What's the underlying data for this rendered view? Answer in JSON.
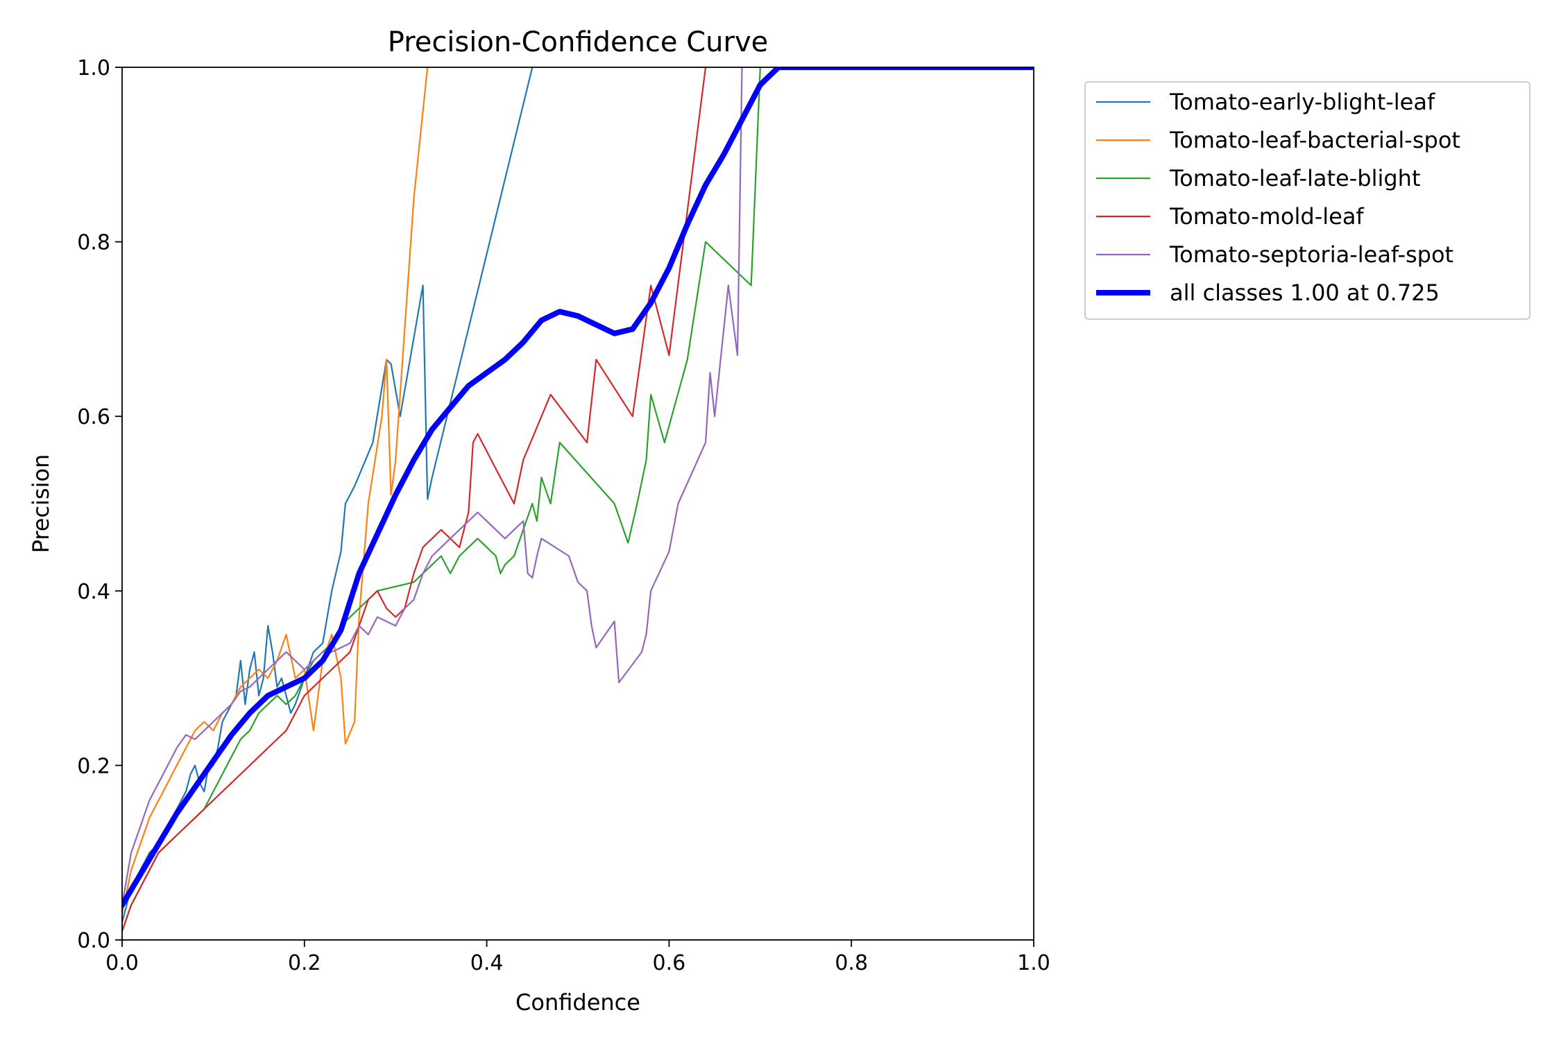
{
  "chart_data": {
    "type": "line",
    "title": "Precision-Confidence Curve",
    "xlabel": "Confidence",
    "ylabel": "Precision",
    "xlim": [
      0,
      1
    ],
    "ylim": [
      0,
      1
    ],
    "xticks": [
      0.0,
      0.2,
      0.4,
      0.6,
      0.8,
      1.0
    ],
    "yticks": [
      0.0,
      0.2,
      0.4,
      0.6,
      0.8,
      1.0
    ],
    "xtick_labels": [
      "0.0",
      "0.2",
      "0.4",
      "0.6",
      "0.8",
      "1.0"
    ],
    "ytick_labels": [
      "0.0",
      "0.2",
      "0.4",
      "0.6",
      "0.8",
      "1.0"
    ],
    "grid": false,
    "legend_position": "outside top-right",
    "series": [
      {
        "name": "Tomato-early-blight-leaf",
        "color": "#1f77b4",
        "width": "thin",
        "points": [
          [
            0.0,
            0.02
          ],
          [
            0.01,
            0.06
          ],
          [
            0.02,
            0.08
          ],
          [
            0.03,
            0.1
          ],
          [
            0.04,
            0.11
          ],
          [
            0.05,
            0.13
          ],
          [
            0.06,
            0.15
          ],
          [
            0.07,
            0.17
          ],
          [
            0.075,
            0.19
          ],
          [
            0.08,
            0.2
          ],
          [
            0.085,
            0.18
          ],
          [
            0.09,
            0.17
          ],
          [
            0.095,
            0.2
          ],
          [
            0.1,
            0.2
          ],
          [
            0.105,
            0.22
          ],
          [
            0.11,
            0.25
          ],
          [
            0.115,
            0.26
          ],
          [
            0.12,
            0.27
          ],
          [
            0.125,
            0.28
          ],
          [
            0.13,
            0.32
          ],
          [
            0.135,
            0.27
          ],
          [
            0.14,
            0.31
          ],
          [
            0.145,
            0.33
          ],
          [
            0.15,
            0.28
          ],
          [
            0.155,
            0.3
          ],
          [
            0.16,
            0.36
          ],
          [
            0.165,
            0.33
          ],
          [
            0.17,
            0.29
          ],
          [
            0.175,
            0.3
          ],
          [
            0.18,
            0.28
          ],
          [
            0.185,
            0.26
          ],
          [
            0.19,
            0.27
          ],
          [
            0.2,
            0.3
          ],
          [
            0.21,
            0.33
          ],
          [
            0.22,
            0.34
          ],
          [
            0.23,
            0.4
          ],
          [
            0.24,
            0.445
          ],
          [
            0.245,
            0.5
          ],
          [
            0.255,
            0.52
          ],
          [
            0.265,
            0.545
          ],
          [
            0.275,
            0.57
          ],
          [
            0.29,
            0.665
          ],
          [
            0.295,
            0.66
          ],
          [
            0.305,
            0.6
          ],
          [
            0.33,
            0.75
          ],
          [
            0.335,
            0.505
          ],
          [
            0.34,
            0.53
          ],
          [
            0.45,
            1.0
          ]
        ]
      },
      {
        "name": "Tomato-leaf-bacterial-spot",
        "color": "#ff7f0e",
        "width": "thin",
        "points": [
          [
            0.0,
            0.03
          ],
          [
            0.01,
            0.08
          ],
          [
            0.02,
            0.11
          ],
          [
            0.03,
            0.14
          ],
          [
            0.04,
            0.16
          ],
          [
            0.05,
            0.18
          ],
          [
            0.06,
            0.2
          ],
          [
            0.07,
            0.22
          ],
          [
            0.08,
            0.24
          ],
          [
            0.09,
            0.25
          ],
          [
            0.1,
            0.24
          ],
          [
            0.11,
            0.26
          ],
          [
            0.12,
            0.27
          ],
          [
            0.13,
            0.29
          ],
          [
            0.14,
            0.3
          ],
          [
            0.15,
            0.31
          ],
          [
            0.16,
            0.3
          ],
          [
            0.17,
            0.32
          ],
          [
            0.18,
            0.35
          ],
          [
            0.19,
            0.3
          ],
          [
            0.2,
            0.31
          ],
          [
            0.21,
            0.24
          ],
          [
            0.22,
            0.32
          ],
          [
            0.23,
            0.35
          ],
          [
            0.24,
            0.3
          ],
          [
            0.245,
            0.225
          ],
          [
            0.255,
            0.25
          ],
          [
            0.26,
            0.37
          ],
          [
            0.27,
            0.5
          ],
          [
            0.285,
            0.6
          ],
          [
            0.29,
            0.665
          ],
          [
            0.295,
            0.51
          ],
          [
            0.3,
            0.55
          ],
          [
            0.31,
            0.7
          ],
          [
            0.32,
            0.85
          ],
          [
            0.335,
            1.0
          ]
        ]
      },
      {
        "name": "Tomato-leaf-late-blight",
        "color": "#2ca02c",
        "width": "thin",
        "points": [
          [
            0.0,
            0.01
          ],
          [
            0.01,
            0.04
          ],
          [
            0.02,
            0.06
          ],
          [
            0.03,
            0.08
          ],
          [
            0.04,
            0.1
          ],
          [
            0.05,
            0.11
          ],
          [
            0.06,
            0.12
          ],
          [
            0.07,
            0.13
          ],
          [
            0.08,
            0.14
          ],
          [
            0.09,
            0.15
          ],
          [
            0.1,
            0.17
          ],
          [
            0.11,
            0.19
          ],
          [
            0.12,
            0.21
          ],
          [
            0.13,
            0.23
          ],
          [
            0.14,
            0.24
          ],
          [
            0.15,
            0.26
          ],
          [
            0.16,
            0.27
          ],
          [
            0.17,
            0.28
          ],
          [
            0.18,
            0.27
          ],
          [
            0.19,
            0.28
          ],
          [
            0.2,
            0.3
          ],
          [
            0.21,
            0.32
          ],
          [
            0.22,
            0.33
          ],
          [
            0.23,
            0.34
          ],
          [
            0.24,
            0.36
          ],
          [
            0.25,
            0.37
          ],
          [
            0.26,
            0.38
          ],
          [
            0.27,
            0.39
          ],
          [
            0.28,
            0.4
          ],
          [
            0.32,
            0.41
          ],
          [
            0.34,
            0.43
          ],
          [
            0.35,
            0.44
          ],
          [
            0.36,
            0.42
          ],
          [
            0.37,
            0.44
          ],
          [
            0.38,
            0.45
          ],
          [
            0.39,
            0.46
          ],
          [
            0.4,
            0.45
          ],
          [
            0.41,
            0.44
          ],
          [
            0.415,
            0.42
          ],
          [
            0.42,
            0.43
          ],
          [
            0.43,
            0.44
          ],
          [
            0.44,
            0.47
          ],
          [
            0.45,
            0.5
          ],
          [
            0.455,
            0.48
          ],
          [
            0.46,
            0.53
          ],
          [
            0.47,
            0.5
          ],
          [
            0.48,
            0.57
          ],
          [
            0.54,
            0.5
          ],
          [
            0.555,
            0.455
          ],
          [
            0.565,
            0.5
          ],
          [
            0.575,
            0.55
          ],
          [
            0.58,
            0.625
          ],
          [
            0.595,
            0.57
          ],
          [
            0.62,
            0.665
          ],
          [
            0.64,
            0.8
          ],
          [
            0.69,
            0.75
          ],
          [
            0.7,
            1.0
          ]
        ]
      },
      {
        "name": "Tomato-mold-leaf",
        "color": "#d62728",
        "width": "thin",
        "points": [
          [
            0.0,
            0.01
          ],
          [
            0.01,
            0.04
          ],
          [
            0.02,
            0.06
          ],
          [
            0.03,
            0.08
          ],
          [
            0.04,
            0.1
          ],
          [
            0.05,
            0.11
          ],
          [
            0.06,
            0.12
          ],
          [
            0.07,
            0.13
          ],
          [
            0.08,
            0.14
          ],
          [
            0.09,
            0.15
          ],
          [
            0.1,
            0.16
          ],
          [
            0.11,
            0.17
          ],
          [
            0.12,
            0.18
          ],
          [
            0.13,
            0.19
          ],
          [
            0.14,
            0.2
          ],
          [
            0.15,
            0.21
          ],
          [
            0.16,
            0.22
          ],
          [
            0.17,
            0.23
          ],
          [
            0.18,
            0.24
          ],
          [
            0.19,
            0.26
          ],
          [
            0.2,
            0.28
          ],
          [
            0.21,
            0.29
          ],
          [
            0.22,
            0.3
          ],
          [
            0.23,
            0.31
          ],
          [
            0.24,
            0.32
          ],
          [
            0.25,
            0.33
          ],
          [
            0.26,
            0.36
          ],
          [
            0.27,
            0.39
          ],
          [
            0.28,
            0.4
          ],
          [
            0.29,
            0.38
          ],
          [
            0.3,
            0.37
          ],
          [
            0.31,
            0.38
          ],
          [
            0.32,
            0.42
          ],
          [
            0.33,
            0.45
          ],
          [
            0.35,
            0.47
          ],
          [
            0.36,
            0.46
          ],
          [
            0.37,
            0.45
          ],
          [
            0.38,
            0.49
          ],
          [
            0.385,
            0.57
          ],
          [
            0.39,
            0.58
          ],
          [
            0.41,
            0.54
          ],
          [
            0.43,
            0.5
          ],
          [
            0.44,
            0.55
          ],
          [
            0.47,
            0.625
          ],
          [
            0.51,
            0.57
          ],
          [
            0.52,
            0.665
          ],
          [
            0.56,
            0.6
          ],
          [
            0.58,
            0.75
          ],
          [
            0.6,
            0.67
          ],
          [
            0.64,
            1.0
          ]
        ]
      },
      {
        "name": "Tomato-septoria-leaf-spot",
        "color": "#9467bd",
        "width": "thin",
        "points": [
          [
            0.0,
            0.04
          ],
          [
            0.01,
            0.1
          ],
          [
            0.02,
            0.13
          ],
          [
            0.03,
            0.16
          ],
          [
            0.04,
            0.18
          ],
          [
            0.05,
            0.2
          ],
          [
            0.06,
            0.22
          ],
          [
            0.07,
            0.235
          ],
          [
            0.08,
            0.23
          ],
          [
            0.09,
            0.24
          ],
          [
            0.1,
            0.25
          ],
          [
            0.11,
            0.26
          ],
          [
            0.12,
            0.27
          ],
          [
            0.13,
            0.285
          ],
          [
            0.14,
            0.29
          ],
          [
            0.15,
            0.3
          ],
          [
            0.16,
            0.31
          ],
          [
            0.17,
            0.32
          ],
          [
            0.18,
            0.33
          ],
          [
            0.19,
            0.32
          ],
          [
            0.2,
            0.31
          ],
          [
            0.21,
            0.32
          ],
          [
            0.22,
            0.33
          ],
          [
            0.23,
            0.33
          ],
          [
            0.24,
            0.335
          ],
          [
            0.25,
            0.34
          ],
          [
            0.26,
            0.36
          ],
          [
            0.27,
            0.35
          ],
          [
            0.28,
            0.37
          ],
          [
            0.3,
            0.36
          ],
          [
            0.31,
            0.38
          ],
          [
            0.32,
            0.39
          ],
          [
            0.33,
            0.42
          ],
          [
            0.34,
            0.44
          ],
          [
            0.35,
            0.45
          ],
          [
            0.36,
            0.46
          ],
          [
            0.37,
            0.47
          ],
          [
            0.38,
            0.48
          ],
          [
            0.39,
            0.49
          ],
          [
            0.4,
            0.48
          ],
          [
            0.41,
            0.47
          ],
          [
            0.42,
            0.46
          ],
          [
            0.43,
            0.47
          ],
          [
            0.44,
            0.48
          ],
          [
            0.445,
            0.42
          ],
          [
            0.45,
            0.415
          ],
          [
            0.455,
            0.44
          ],
          [
            0.46,
            0.46
          ],
          [
            0.49,
            0.44
          ],
          [
            0.5,
            0.41
          ],
          [
            0.51,
            0.4
          ],
          [
            0.515,
            0.36
          ],
          [
            0.52,
            0.335
          ],
          [
            0.54,
            0.365
          ],
          [
            0.545,
            0.295
          ],
          [
            0.57,
            0.33
          ],
          [
            0.575,
            0.35
          ],
          [
            0.58,
            0.4
          ],
          [
            0.6,
            0.445
          ],
          [
            0.61,
            0.5
          ],
          [
            0.64,
            0.57
          ],
          [
            0.645,
            0.65
          ],
          [
            0.65,
            0.6
          ],
          [
            0.665,
            0.75
          ],
          [
            0.675,
            0.67
          ],
          [
            0.68,
            1.0
          ]
        ]
      },
      {
        "name": "all classes 1.00 at 0.725",
        "color": "#0000ff",
        "width": "thick",
        "points": [
          [
            0.0,
            0.04
          ],
          [
            0.02,
            0.075
          ],
          [
            0.04,
            0.11
          ],
          [
            0.06,
            0.145
          ],
          [
            0.08,
            0.175
          ],
          [
            0.1,
            0.205
          ],
          [
            0.12,
            0.235
          ],
          [
            0.14,
            0.26
          ],
          [
            0.16,
            0.28
          ],
          [
            0.18,
            0.29
          ],
          [
            0.2,
            0.3
          ],
          [
            0.22,
            0.32
          ],
          [
            0.24,
            0.355
          ],
          [
            0.26,
            0.42
          ],
          [
            0.28,
            0.465
          ],
          [
            0.3,
            0.51
          ],
          [
            0.32,
            0.55
          ],
          [
            0.34,
            0.585
          ],
          [
            0.36,
            0.61
          ],
          [
            0.38,
            0.635
          ],
          [
            0.4,
            0.65
          ],
          [
            0.42,
            0.665
          ],
          [
            0.44,
            0.685
          ],
          [
            0.46,
            0.71
          ],
          [
            0.48,
            0.72
          ],
          [
            0.5,
            0.715
          ],
          [
            0.52,
            0.705
          ],
          [
            0.54,
            0.695
          ],
          [
            0.56,
            0.7
          ],
          [
            0.58,
            0.73
          ],
          [
            0.6,
            0.77
          ],
          [
            0.62,
            0.82
          ],
          [
            0.64,
            0.865
          ],
          [
            0.66,
            0.9
          ],
          [
            0.68,
            0.94
          ],
          [
            0.7,
            0.98
          ],
          [
            0.72,
            1.0
          ],
          [
            0.75,
            1.0
          ],
          [
            0.8,
            1.0
          ],
          [
            0.9,
            1.0
          ],
          [
            1.0,
            1.0
          ]
        ]
      }
    ]
  }
}
